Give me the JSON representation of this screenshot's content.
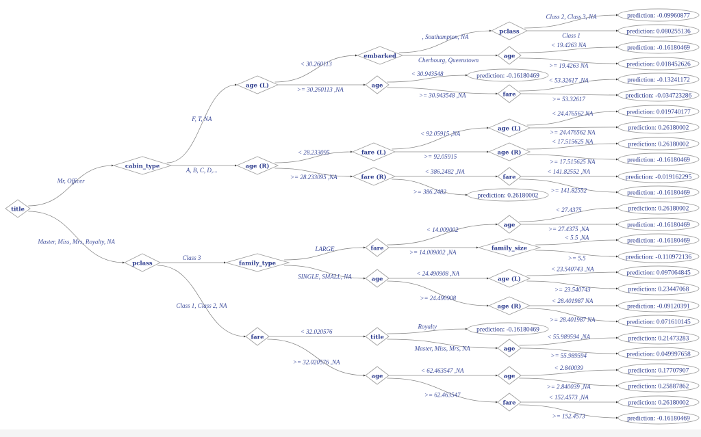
{
  "colors": {
    "text": "#2b3a8c",
    "edge": "#8a8a8a",
    "shape": "#a0a0a0",
    "background": "#ffffff"
  },
  "nodes": [
    {
      "id": "title0",
      "label": "title",
      "kind": "split"
    },
    {
      "id": "cabin",
      "label": "cabin_type",
      "kind": "split"
    },
    {
      "id": "pclass0",
      "label": "pclass",
      "kind": "split"
    },
    {
      "id": "ageL0",
      "label": "age (L)",
      "kind": "split"
    },
    {
      "id": "ageR0",
      "label": "age (R)",
      "kind": "split"
    },
    {
      "id": "embarked",
      "label": "embarked",
      "kind": "split"
    },
    {
      "id": "age1",
      "label": "age",
      "kind": "split"
    },
    {
      "id": "pclass1",
      "label": "pclass",
      "kind": "split"
    },
    {
      "id": "age2",
      "label": "age",
      "kind": "split"
    },
    {
      "id": "fare1",
      "label": "fare",
      "kind": "split"
    },
    {
      "id": "p1",
      "label": "prediction: -0.09960877",
      "kind": "leaf"
    },
    {
      "id": "p2",
      "label": "prediction: 0.080255136",
      "kind": "leaf"
    },
    {
      "id": "p3",
      "label": "prediction: -0.16180469",
      "kind": "leaf"
    },
    {
      "id": "p4",
      "label": "prediction: 0.018452626",
      "kind": "leaf"
    },
    {
      "id": "p5",
      "label": "prediction: -0.16180469",
      "kind": "leaf"
    },
    {
      "id": "p6",
      "label": "prediction: -0.13241172",
      "kind": "leaf"
    },
    {
      "id": "p7",
      "label": "prediction: -0.034723286",
      "kind": "leaf"
    },
    {
      "id": "fareL",
      "label": "fare (L)",
      "kind": "split"
    },
    {
      "id": "fareR",
      "label": "fare (R)",
      "kind": "split"
    },
    {
      "id": "ageL1",
      "label": "age (L)",
      "kind": "split"
    },
    {
      "id": "ageR1",
      "label": "age (R)",
      "kind": "split"
    },
    {
      "id": "fare2",
      "label": "fare",
      "kind": "split"
    },
    {
      "id": "p8",
      "label": "prediction: 0.019740177",
      "kind": "leaf"
    },
    {
      "id": "p9",
      "label": "prediction: 0.26180002",
      "kind": "leaf"
    },
    {
      "id": "p10",
      "label": "prediction: 0.26180002",
      "kind": "leaf"
    },
    {
      "id": "p11",
      "label": "prediction: -0.16180469",
      "kind": "leaf"
    },
    {
      "id": "p12",
      "label": "prediction: -0.019162295",
      "kind": "leaf"
    },
    {
      "id": "p13",
      "label": "prediction: -0.16180469",
      "kind": "leaf"
    },
    {
      "id": "p14",
      "label": "prediction: 0.26180002",
      "kind": "leaf"
    },
    {
      "id": "famtype",
      "label": "family_type",
      "kind": "split"
    },
    {
      "id": "fare3",
      "label": "fare",
      "kind": "split"
    },
    {
      "id": "age3",
      "label": "age",
      "kind": "split"
    },
    {
      "id": "age4",
      "label": "age",
      "kind": "split"
    },
    {
      "id": "famsize",
      "label": "family_size",
      "kind": "split"
    },
    {
      "id": "p15",
      "label": "prediction: 0.26180002",
      "kind": "leaf"
    },
    {
      "id": "p16",
      "label": "prediction: -0.16180469",
      "kind": "leaf"
    },
    {
      "id": "p17",
      "label": "prediction: -0.16180469",
      "kind": "leaf"
    },
    {
      "id": "p18",
      "label": "prediction: -0.110972136",
      "kind": "leaf"
    },
    {
      "id": "ageL2",
      "label": "age (L)",
      "kind": "split"
    },
    {
      "id": "ageR2",
      "label": "age (R)",
      "kind": "split"
    },
    {
      "id": "p19",
      "label": "prediction: 0.097064845",
      "kind": "leaf"
    },
    {
      "id": "p20",
      "label": "prediction: 0.23447068",
      "kind": "leaf"
    },
    {
      "id": "p21",
      "label": "prediction: -0.09120391",
      "kind": "leaf"
    },
    {
      "id": "p22",
      "label": "prediction: 0.071610145",
      "kind": "leaf"
    },
    {
      "id": "fare4",
      "label": "fare",
      "kind": "split"
    },
    {
      "id": "title2",
      "label": "title",
      "kind": "split"
    },
    {
      "id": "age5",
      "label": "age",
      "kind": "split"
    },
    {
      "id": "p23",
      "label": "prediction: -0.16180469",
      "kind": "leaf"
    },
    {
      "id": "age6",
      "label": "age",
      "kind": "split"
    },
    {
      "id": "p24",
      "label": "prediction: 0.21473283",
      "kind": "leaf"
    },
    {
      "id": "p25",
      "label": "prediction: 0.049997658",
      "kind": "leaf"
    },
    {
      "id": "age7",
      "label": "age",
      "kind": "split"
    },
    {
      "id": "fare5",
      "label": "fare",
      "kind": "split"
    },
    {
      "id": "p26",
      "label": "prediction: 0.17707907",
      "kind": "leaf"
    },
    {
      "id": "p27",
      "label": "prediction: 0.25887862",
      "kind": "leaf"
    },
    {
      "id": "p28",
      "label": "prediction: 0.26180002",
      "kind": "leaf"
    },
    {
      "id": "p29",
      "label": "prediction: -0.16180469",
      "kind": "leaf"
    }
  ],
  "edges": [
    {
      "from": "title0",
      "to": "cabin",
      "label": "Mr, Officer"
    },
    {
      "from": "title0",
      "to": "pclass0",
      "label": "Master, Miss, Mrs, Royalty, NA"
    },
    {
      "from": "cabin",
      "to": "ageL0",
      "label": "F, T, NA"
    },
    {
      "from": "cabin",
      "to": "ageR0",
      "label": "A, B, C, D,..."
    },
    {
      "from": "ageL0",
      "to": "embarked",
      "label": "< 30.260113"
    },
    {
      "from": "ageL0",
      "to": "age1",
      "label": ">= 30.260113 ,NA"
    },
    {
      "from": "embarked",
      "to": "pclass1",
      "label": ", Southampton, NA"
    },
    {
      "from": "embarked",
      "to": "age2",
      "label": "Cherbourg, Queenstown"
    },
    {
      "from": "pclass1",
      "to": "p1",
      "label": "Class 2, Class 3, NA"
    },
    {
      "from": "pclass1",
      "to": "p2",
      "label": "Class 1"
    },
    {
      "from": "age2",
      "to": "p3",
      "label": "< 19.4263 NA"
    },
    {
      "from": "age2",
      "to": "p4",
      "label": ">= 19.4263 NA"
    },
    {
      "from": "age1",
      "to": "p5",
      "label": "< 30.943548"
    },
    {
      "from": "age1",
      "to": "fare1",
      "label": ">= 30.943548 ,NA"
    },
    {
      "from": "fare1",
      "to": "p6",
      "label": "< 53.32617 ,NA"
    },
    {
      "from": "fare1",
      "to": "p7",
      "label": ">= 53.32617"
    },
    {
      "from": "ageR0",
      "to": "fareL",
      "label": "< 28.233095"
    },
    {
      "from": "ageR0",
      "to": "fareR",
      "label": ">= 28.233095 ,NA"
    },
    {
      "from": "fareL",
      "to": "ageL1",
      "label": "< 92.05915 ,NA"
    },
    {
      "from": "fareL",
      "to": "ageR1",
      "label": ">= 92.05915"
    },
    {
      "from": "ageL1",
      "to": "p8",
      "label": "< 24.476562 NA"
    },
    {
      "from": "ageL1",
      "to": "p9",
      "label": ">= 24.476562 NA"
    },
    {
      "from": "ageR1",
      "to": "p10",
      "label": "< 17.515625 NA"
    },
    {
      "from": "ageR1",
      "to": "p11",
      "label": ">= 17.515625 NA"
    },
    {
      "from": "fareR",
      "to": "fare2",
      "label": "< 386.2482 ,NA"
    },
    {
      "from": "fareR",
      "to": "p14",
      "label": ">= 386.2482"
    },
    {
      "from": "fare2",
      "to": "p12",
      "label": "< 141.82552 ,NA"
    },
    {
      "from": "fare2",
      "to": "p13",
      "label": ">= 141.82552"
    },
    {
      "from": "pclass0",
      "to": "famtype",
      "label": "Class 3"
    },
    {
      "from": "pclass0",
      "to": "fare4",
      "label": "Class 1, Class 2, NA"
    },
    {
      "from": "famtype",
      "to": "fare3",
      "label": "LARGE"
    },
    {
      "from": "famtype",
      "to": "age3",
      "label": "SINGLE, SMALL, NA"
    },
    {
      "from": "fare3",
      "to": "age4",
      "label": "< 14.009002"
    },
    {
      "from": "fare3",
      "to": "famsize",
      "label": ">= 14.009002 ,NA"
    },
    {
      "from": "age4",
      "to": "p15",
      "label": "< 27.4375"
    },
    {
      "from": "age4",
      "to": "p16",
      "label": ">= 27.4375 ,NA"
    },
    {
      "from": "famsize",
      "to": "p17",
      "label": "< 5.5 ,NA"
    },
    {
      "from": "famsize",
      "to": "p18",
      "label": ">= 5.5"
    },
    {
      "from": "age3",
      "to": "ageL2",
      "label": "< 24.490908 ,NA"
    },
    {
      "from": "age3",
      "to": "ageR2",
      "label": ">= 24.490908"
    },
    {
      "from": "ageL2",
      "to": "p19",
      "label": "< 23.540743 ,NA"
    },
    {
      "from": "ageL2",
      "to": "p20",
      "label": ">= 23.540743"
    },
    {
      "from": "ageR2",
      "to": "p21",
      "label": "< 28.401987 NA"
    },
    {
      "from": "ageR2",
      "to": "p22",
      "label": ">= 28.401987 NA"
    },
    {
      "from": "fare4",
      "to": "title2",
      "label": "< 32.020576"
    },
    {
      "from": "fare4",
      "to": "age5",
      "label": ">= 32.020576 ,NA"
    },
    {
      "from": "title2",
      "to": "p23",
      "label": "Royalty"
    },
    {
      "from": "title2",
      "to": "age6",
      "label": "Master, Miss, Mrs, NA"
    },
    {
      "from": "age6",
      "to": "p24",
      "label": "< 55.989594 ,NA"
    },
    {
      "from": "age6",
      "to": "p25",
      "label": ">= 55.989594"
    },
    {
      "from": "age5",
      "to": "age7",
      "label": "< 62.463547 ,NA"
    },
    {
      "from": "age5",
      "to": "fare5",
      "label": ">= 62.463547"
    },
    {
      "from": "age7",
      "to": "p26",
      "label": "< 2.840039"
    },
    {
      "from": "age7",
      "to": "p27",
      "label": ">= 2.840039 ,NA"
    },
    {
      "from": "fare5",
      "to": "p28",
      "label": "< 152.4573 ,NA"
    },
    {
      "from": "fare5",
      "to": "p29",
      "label": ">= 152.4573"
    }
  ]
}
